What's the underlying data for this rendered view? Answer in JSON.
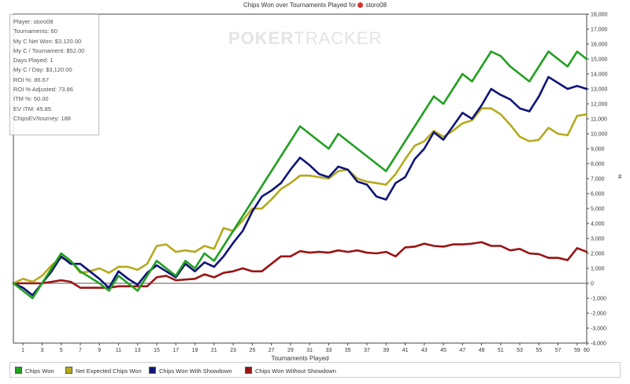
{
  "header": {
    "title": "Chips Won over Tournaments Played for",
    "player": "storo08"
  },
  "watermark": {
    "part1": "POKER",
    "part2": "TRACKER"
  },
  "stats": [
    "Player: storo08",
    "Tournaments: 60",
    "My C Net Won: $3,120.00",
    "My C / Tournament: $52.00",
    "Days Played: 1",
    "My C / Day: $3,120.00",
    "ROI %: 86.67",
    "ROI % Adjusted: 73.86",
    "ITM %: 50.00",
    "EV ITM: 45.85",
    "ChipsEV/tourney: 188"
  ],
  "chart_data": {
    "type": "line",
    "xlabel": "Tournaments Played",
    "ylabel": "#",
    "x": [
      0,
      1,
      2,
      3,
      4,
      5,
      6,
      7,
      8,
      9,
      10,
      11,
      12,
      13,
      14,
      15,
      16,
      17,
      18,
      19,
      20,
      21,
      22,
      23,
      24,
      25,
      26,
      27,
      28,
      29,
      30,
      31,
      32,
      33,
      34,
      35,
      36,
      37,
      38,
      39,
      40,
      41,
      42,
      43,
      44,
      45,
      46,
      47,
      48,
      49,
      50,
      51,
      52,
      53,
      54,
      55,
      56,
      57,
      58,
      59,
      60
    ],
    "xlim": [
      0,
      60
    ],
    "ylim": [
      -4000,
      18000
    ],
    "x_ticks": [
      1,
      3,
      5,
      7,
      9,
      11,
      13,
      15,
      17,
      19,
      21,
      23,
      25,
      27,
      29,
      31,
      33,
      35,
      37,
      39,
      41,
      43,
      45,
      47,
      49,
      51,
      53,
      55,
      57,
      59,
      60
    ],
    "y_ticks": [
      -4000,
      -3000,
      -2000,
      -1000,
      0,
      1000,
      2000,
      3000,
      4000,
      5000,
      6000,
      7000,
      8000,
      9000,
      10000,
      11000,
      12000,
      13000,
      14000,
      15000,
      16000,
      17000,
      18000
    ],
    "y_tick_labels": [
      "-4,000",
      "-3,000",
      "-2,000",
      "-1,000",
      "0",
      "1,000",
      "2,000",
      "3,000",
      "4,000",
      "5,000",
      "6,000",
      "7,000",
      "8,000",
      "9,000",
      "10,000",
      "11,000",
      "12,000",
      "13,000",
      "14,000",
      "15,000",
      "16,000",
      "17,000",
      "18,000"
    ],
    "grid": false,
    "legend_position": "bottom",
    "series": [
      {
        "name": "Chips Won",
        "color": "#22a022",
        "values": [
          0,
          -500,
          -1000,
          0,
          1000,
          2000,
          1500,
          800,
          400,
          0,
          -500,
          500,
          0,
          -500,
          500,
          1500,
          1000,
          500,
          1500,
          1000,
          2000,
          1500,
          2500,
          3500,
          4500,
          5500,
          6500,
          7500,
          8500,
          9500,
          10500,
          10000,
          9500,
          9000,
          10000,
          9500,
          9000,
          8500,
          8000,
          7500,
          8500,
          9500,
          10500,
          11500,
          12500,
          12000,
          13000,
          14000,
          13500,
          14500,
          15500,
          15200,
          14500,
          14000,
          13500,
          14500,
          15500,
          15000,
          14500,
          15500,
          15000
        ]
      },
      {
        "name": "Net Expected Chips Won",
        "color": "#b5aa1f",
        "values": [
          0,
          300,
          100,
          500,
          1200,
          1700,
          1500,
          700,
          800,
          1000,
          700,
          1100,
          1100,
          900,
          1300,
          2500,
          2600,
          2100,
          2200,
          2100,
          2500,
          2300,
          3700,
          3500,
          4200,
          5000,
          5000,
          5600,
          6300,
          6700,
          7200,
          7200,
          7100,
          7000,
          7500,
          7600,
          7000,
          6800,
          6700,
          6600,
          7300,
          8300,
          9200,
          9500,
          10200,
          9800,
          10200,
          10700,
          10900,
          11700,
          11700,
          11300,
          10600,
          9800,
          9500,
          9600,
          10400,
          10000,
          9900,
          11200,
          11300
        ]
      },
      {
        "name": "Chips Won With Showdown",
        "color": "#0f1478",
        "values": [
          0,
          -300,
          -800,
          0,
          800,
          1800,
          1300,
          1300,
          800,
          300,
          -300,
          800,
          300,
          -100,
          700,
          1200,
          800,
          400,
          1300,
          800,
          1400,
          1100,
          1800,
          2700,
          3500,
          4800,
          5800,
          6200,
          6700,
          7600,
          8400,
          7900,
          7300,
          7100,
          7800,
          7600,
          6800,
          6600,
          5800,
          5600,
          6700,
          7100,
          8300,
          9000,
          10100,
          9600,
          10500,
          11400,
          11000,
          11900,
          13000,
          12600,
          12300,
          11700,
          11500,
          12500,
          13800,
          13400,
          13000,
          13200,
          13000
        ]
      },
      {
        "name": "Chips Won Without Showdown",
        "color": "#9a1414",
        "values": [
          0,
          0,
          0,
          0,
          100,
          200,
          100,
          -300,
          -300,
          -300,
          -300,
          -200,
          -200,
          -200,
          -200,
          400,
          500,
          200,
          250,
          300,
          600,
          400,
          700,
          800,
          1000,
          800,
          800,
          1300,
          1800,
          1800,
          2150,
          2050,
          2100,
          2050,
          2200,
          2100,
          2200,
          2050,
          2000,
          2100,
          1800,
          2400,
          2450,
          2650,
          2500,
          2450,
          2600,
          2600,
          2650,
          2750,
          2500,
          2500,
          2200,
          2300,
          2000,
          1950,
          1700,
          1700,
          1550,
          2350,
          2100
        ]
      }
    ]
  }
}
